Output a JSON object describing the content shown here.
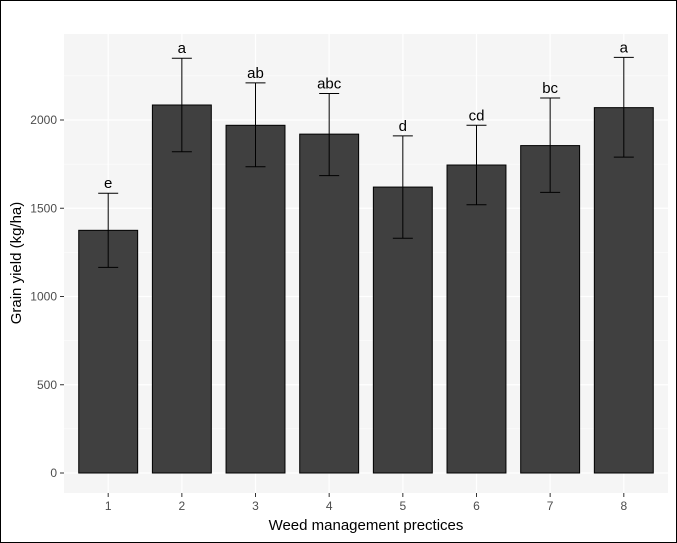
{
  "chart_data": {
    "type": "bar",
    "title": "",
    "xlabel": "Weed management prectices",
    "ylabel": "Grain yield (kg/ha)",
    "categories": [
      "1",
      "2",
      "3",
      "4",
      "5",
      "6",
      "7",
      "8"
    ],
    "values": [
      1375,
      2085,
      1970,
      1920,
      1620,
      1745,
      1855,
      2070
    ],
    "error_low": [
      1165,
      1820,
      1735,
      1685,
      1330,
      1520,
      1590,
      1790
    ],
    "error_high": [
      1585,
      2350,
      2210,
      2150,
      1910,
      1970,
      2125,
      2355
    ],
    "significance_labels": [
      "e",
      "a",
      "ab",
      "abc",
      "d",
      "cd",
      "bc",
      "a"
    ],
    "yticks": [
      0,
      500,
      1000,
      1500,
      2000
    ],
    "ylim": [
      -130,
      2480
    ],
    "grid": true,
    "colors": {
      "bar_fill": "#404040",
      "bar_stroke": "#000000",
      "panel_background": "#f5f5f5",
      "grid": "#ffffff"
    }
  }
}
